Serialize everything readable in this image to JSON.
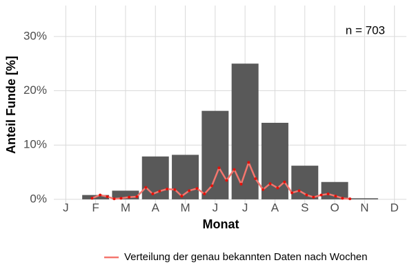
{
  "chart_data": {
    "type": "bar",
    "annotation": "n = 703",
    "xlabel": "Monat",
    "ylabel": "Anteil Funde [%]",
    "categories": [
      "J",
      "F",
      "M",
      "A",
      "M",
      "J",
      "J",
      "A",
      "S",
      "O",
      "N",
      "D"
    ],
    "values": [
      0,
      0.8,
      1.6,
      7.9,
      8.2,
      16.3,
      25.0,
      14.1,
      6.2,
      3.2,
      0.2,
      0
    ],
    "color": "#595959",
    "xlim": [
      0.6,
      12.4
    ],
    "ylim": [
      -0.9,
      35.7
    ],
    "yticks": [
      {
        "value": 0,
        "label": "0%"
      },
      {
        "value": 10,
        "label": "10%"
      },
      {
        "value": 20,
        "label": "20%"
      },
      {
        "value": 30,
        "label": "30%"
      }
    ],
    "grid": true,
    "legend": "bottom",
    "line": {
      "name": "Verteilung der genau bekannten Daten nach Wochen",
      "color": "#f4766e",
      "point_color": "#e3120b",
      "x": [
        1.88,
        2.15,
        2.39,
        2.62,
        2.85,
        3.12,
        3.38,
        3.68,
        3.91,
        4.14,
        4.39,
        4.65,
        4.88,
        5.13,
        5.39,
        5.64,
        5.89,
        6.13,
        6.38,
        6.64,
        6.87,
        7.12,
        7.35,
        7.6,
        7.84,
        8.09,
        8.32,
        8.57,
        8.81,
        9.06,
        9.29,
        9.55,
        9.78,
        10.03,
        10.26,
        10.51
      ],
      "values": [
        0.2,
        0.8,
        0.5,
        0.1,
        0.2,
        0.4,
        0.5,
        2.2,
        1.0,
        1.5,
        1.9,
        1.8,
        0.6,
        1.6,
        2.0,
        1.0,
        2.5,
        5.8,
        3.5,
        5.5,
        2.8,
        6.8,
        3.8,
        1.8,
        2.9,
        2.1,
        3.2,
        1.2,
        1.6,
        0.8,
        0.4,
        0.8,
        1.0,
        0.6,
        0.2,
        0.1
      ]
    }
  }
}
